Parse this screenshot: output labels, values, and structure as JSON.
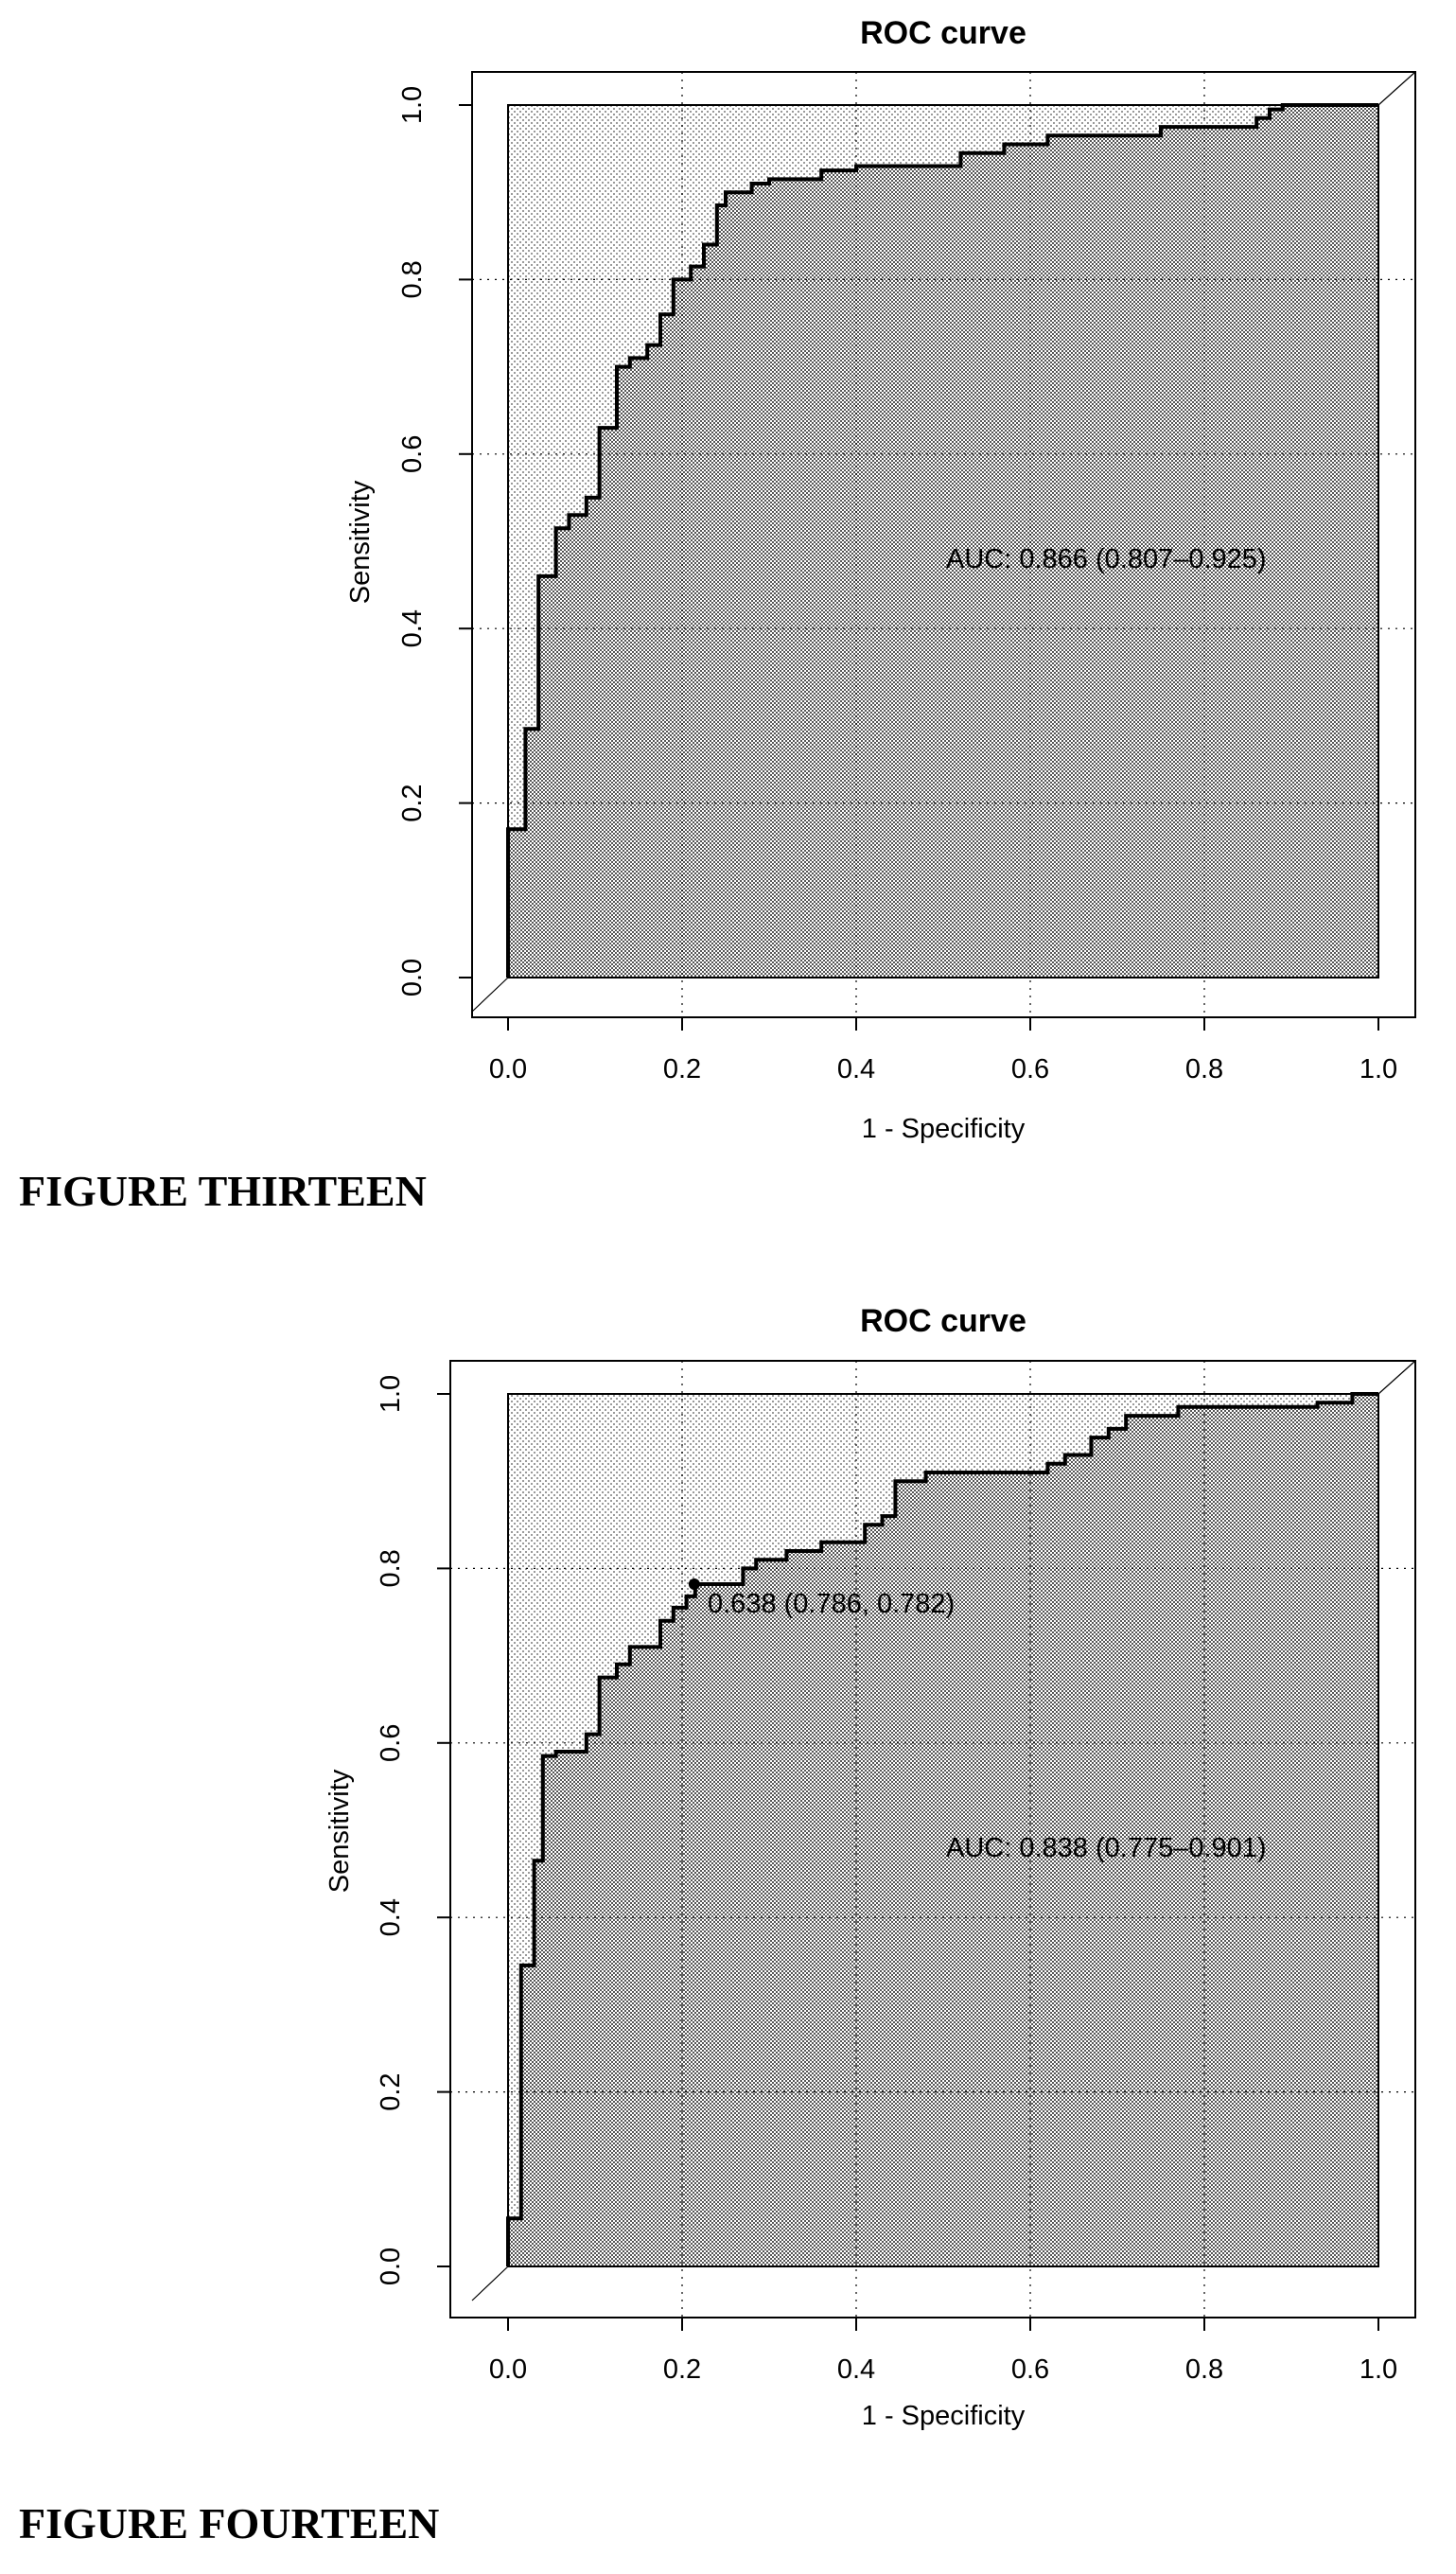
{
  "figures": [
    {
      "caption": "FIGURE THIRTEEN",
      "chart_data": {
        "type": "line",
        "title": "ROC curve",
        "xlabel": "1 - Specificity",
        "ylabel": "Sensitivity",
        "xlim": [
          0.0,
          1.0
        ],
        "ylim": [
          0.0,
          1.0
        ],
        "xticks": [
          "0.0",
          "0.2",
          "0.4",
          "0.6",
          "0.8",
          "1.0"
        ],
        "yticks": [
          "0.0",
          "0.2",
          "0.4",
          "0.6",
          "0.8",
          "1.0"
        ],
        "grid": true,
        "annotations": [
          {
            "text": "AUC: 0.866 (0.807–0.925)",
            "x": 0.5,
            "y": 0.48
          }
        ],
        "series": [
          {
            "x": [
              0.0,
              0.0,
              0.02,
              0.02,
              0.035,
              0.035,
              0.055,
              0.055,
              0.07,
              0.07,
              0.09,
              0.09,
              0.105,
              0.105,
              0.125,
              0.125,
              0.14,
              0.14,
              0.16,
              0.16,
              0.175,
              0.175,
              0.19,
              0.19,
              0.21,
              0.21,
              0.225,
              0.225,
              0.24,
              0.24,
              0.25,
              0.25,
              0.28,
              0.28,
              0.3,
              0.3,
              0.36,
              0.36,
              0.4,
              0.4,
              0.52,
              0.52,
              0.57,
              0.57,
              0.62,
              0.62,
              0.75,
              0.75,
              0.86,
              0.86,
              0.875,
              0.875,
              0.89,
              0.89,
              1.0
            ],
            "y": [
              0.0,
              0.17,
              0.17,
              0.285,
              0.285,
              0.46,
              0.46,
              0.515,
              0.515,
              0.53,
              0.53,
              0.55,
              0.55,
              0.63,
              0.63,
              0.7,
              0.7,
              0.71,
              0.71,
              0.725,
              0.725,
              0.76,
              0.76,
              0.8,
              0.8,
              0.815,
              0.815,
              0.84,
              0.84,
              0.885,
              0.885,
              0.9,
              0.9,
              0.91,
              0.91,
              0.915,
              0.915,
              0.925,
              0.925,
              0.93,
              0.93,
              0.945,
              0.945,
              0.955,
              0.955,
              0.965,
              0.965,
              0.975,
              0.975,
              0.985,
              0.985,
              0.995,
              0.995,
              1.0,
              1.0
            ]
          }
        ]
      }
    },
    {
      "caption": "FIGURE FOURTEEN",
      "chart_data": {
        "type": "line",
        "title": "ROC curve",
        "xlabel": "1 - Specificity",
        "ylabel": "Sensitivity",
        "xlim": [
          0.0,
          1.0
        ],
        "ylim": [
          0.0,
          1.0
        ],
        "xticks": [
          "0.0",
          "0.2",
          "0.4",
          "0.6",
          "0.8",
          "1.0"
        ],
        "yticks": [
          "0.0",
          "0.2",
          "0.4",
          "0.6",
          "0.8",
          "1.0"
        ],
        "grid": true,
        "annotations": [
          {
            "text": "0.638 (0.786, 0.782)",
            "x": 0.214,
            "y": 0.76
          },
          {
            "text": "AUC: 0.838 (0.775–0.901)",
            "x": 0.5,
            "y": 0.48
          }
        ],
        "points": [
          {
            "x": 0.214,
            "y": 0.782
          }
        ],
        "series": [
          {
            "x": [
              0.0,
              0.0,
              0.015,
              0.015,
              0.03,
              0.03,
              0.04,
              0.04,
              0.055,
              0.055,
              0.09,
              0.09,
              0.105,
              0.105,
              0.125,
              0.125,
              0.14,
              0.14,
              0.175,
              0.175,
              0.19,
              0.19,
              0.205,
              0.205,
              0.215,
              0.215,
              0.27,
              0.27,
              0.285,
              0.285,
              0.32,
              0.32,
              0.36,
              0.36,
              0.41,
              0.41,
              0.43,
              0.43,
              0.445,
              0.445,
              0.48,
              0.48,
              0.62,
              0.62,
              0.64,
              0.64,
              0.67,
              0.67,
              0.69,
              0.69,
              0.71,
              0.71,
              0.77,
              0.77,
              0.93,
              0.93,
              0.97,
              0.97,
              1.0
            ],
            "y": [
              0.0,
              0.055,
              0.055,
              0.345,
              0.345,
              0.465,
              0.465,
              0.585,
              0.585,
              0.59,
              0.59,
              0.61,
              0.61,
              0.675,
              0.675,
              0.69,
              0.69,
              0.71,
              0.71,
              0.74,
              0.74,
              0.755,
              0.755,
              0.768,
              0.768,
              0.782,
              0.782,
              0.8,
              0.8,
              0.81,
              0.81,
              0.82,
              0.82,
              0.83,
              0.83,
              0.85,
              0.85,
              0.86,
              0.86,
              0.9,
              0.9,
              0.91,
              0.91,
              0.92,
              0.92,
              0.93,
              0.93,
              0.95,
              0.95,
              0.96,
              0.96,
              0.975,
              0.975,
              0.985,
              0.985,
              0.99,
              0.99,
              1.0,
              1.0
            ]
          }
        ]
      }
    }
  ]
}
